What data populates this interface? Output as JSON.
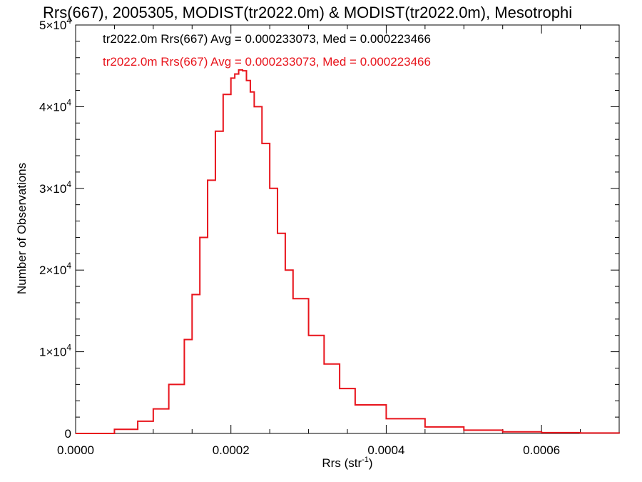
{
  "chart_data": {
    "type": "line",
    "title": "Rrs(667), 2005305, MODIST(tr2022.0m) & MODIST(tr2022.0m), Mesotrophi",
    "xlabel": "Rrs (str",
    "xlabel_sup": "-1",
    "xlabel_close": ")",
    "ylabel": "Number of Observations",
    "xlim": [
      0,
      0.0007
    ],
    "ylim": [
      0,
      50000
    ],
    "x_ticks": [
      {
        "value": 0,
        "label": "0.0000"
      },
      {
        "value": 0.0002,
        "label": "0.0002"
      },
      {
        "value": 0.0004,
        "label": "0.0004"
      },
      {
        "value": 0.0006,
        "label": "0.0006"
      }
    ],
    "y_ticks": [
      {
        "value": 0,
        "label": "0",
        "exp": ""
      },
      {
        "value": 10000,
        "label": "1×10",
        "exp": "4"
      },
      {
        "value": 20000,
        "label": "2×10",
        "exp": "4"
      },
      {
        "value": 30000,
        "label": "3×10",
        "exp": "4"
      },
      {
        "value": 40000,
        "label": "4×10",
        "exp": "4"
      },
      {
        "value": 50000,
        "label": "5×10",
        "exp": "4"
      }
    ],
    "annotations": [
      {
        "text": "tr2022.0m Rrs(667) Avg = 0.000233073, Med = 0.000223466",
        "color": "#000000"
      },
      {
        "text": "tr2022.0m Rrs(667) Avg = 0.000233073, Med = 0.000223466",
        "color": "#e8141c"
      }
    ],
    "series": [
      {
        "color": "#e8141c",
        "x": [
          0.0,
          5e-05,
          8e-05,
          0.0001,
          0.00012,
          0.00014,
          0.00015,
          0.00016,
          0.00017,
          0.00018,
          0.00019,
          0.0002,
          0.000205,
          0.00021,
          0.000215,
          0.00022,
          0.000225,
          0.00023,
          0.00024,
          0.00025,
          0.00026,
          0.00027,
          0.00028,
          0.0003,
          0.00032,
          0.00034,
          0.00036,
          0.0004,
          0.00045,
          0.0005,
          0.00055,
          0.0006,
          0.00065,
          0.0007
        ],
        "values": [
          0,
          500,
          1500,
          3000,
          6000,
          11500,
          17000,
          24000,
          31000,
          37000,
          41500,
          43500,
          44000,
          44500,
          44400,
          43200,
          41800,
          40000,
          35500,
          30000,
          24500,
          20000,
          16500,
          12000,
          8500,
          5500,
          3500,
          1800,
          800,
          400,
          200,
          100,
          50,
          0
        ]
      }
    ]
  }
}
